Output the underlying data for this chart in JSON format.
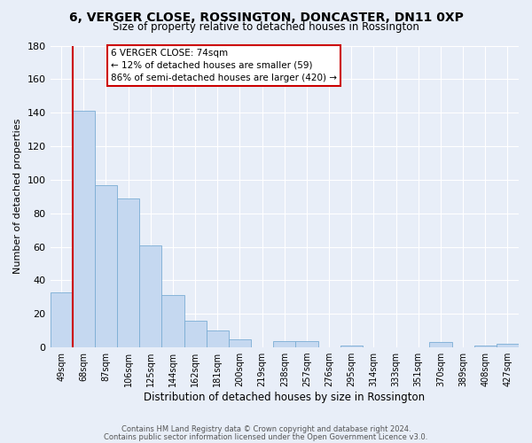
{
  "title": "6, VERGER CLOSE, ROSSINGTON, DONCASTER, DN11 0XP",
  "subtitle": "Size of property relative to detached houses in Rossington",
  "xlabel": "Distribution of detached houses by size in Rossington",
  "ylabel": "Number of detached properties",
  "bar_labels": [
    "49sqm",
    "68sqm",
    "87sqm",
    "106sqm",
    "125sqm",
    "144sqm",
    "162sqm",
    "181sqm",
    "200sqm",
    "219sqm",
    "238sqm",
    "257sqm",
    "276sqm",
    "295sqm",
    "314sqm",
    "333sqm",
    "351sqm",
    "370sqm",
    "389sqm",
    "408sqm",
    "427sqm"
  ],
  "bar_values": [
    33,
    141,
    97,
    89,
    61,
    31,
    16,
    10,
    5,
    0,
    4,
    4,
    0,
    1,
    0,
    0,
    0,
    3,
    0,
    1,
    2
  ],
  "bar_color": "#c5d8f0",
  "bar_edge_color": "#7badd4",
  "vline_color": "#cc0000",
  "ylim": [
    0,
    180
  ],
  "yticks": [
    0,
    20,
    40,
    60,
    80,
    100,
    120,
    140,
    160,
    180
  ],
  "annotation_title": "6 VERGER CLOSE: 74sqm",
  "annotation_line1": "← 12% of detached houses are smaller (59)",
  "annotation_line2": "86% of semi-detached houses are larger (420) →",
  "footer_line1": "Contains HM Land Registry data © Crown copyright and database right 2024.",
  "footer_line2": "Contains public sector information licensed under the Open Government Licence v3.0.",
  "background_color": "#e8eef8",
  "plot_background": "#e8eef8",
  "grid_color": "#ffffff"
}
